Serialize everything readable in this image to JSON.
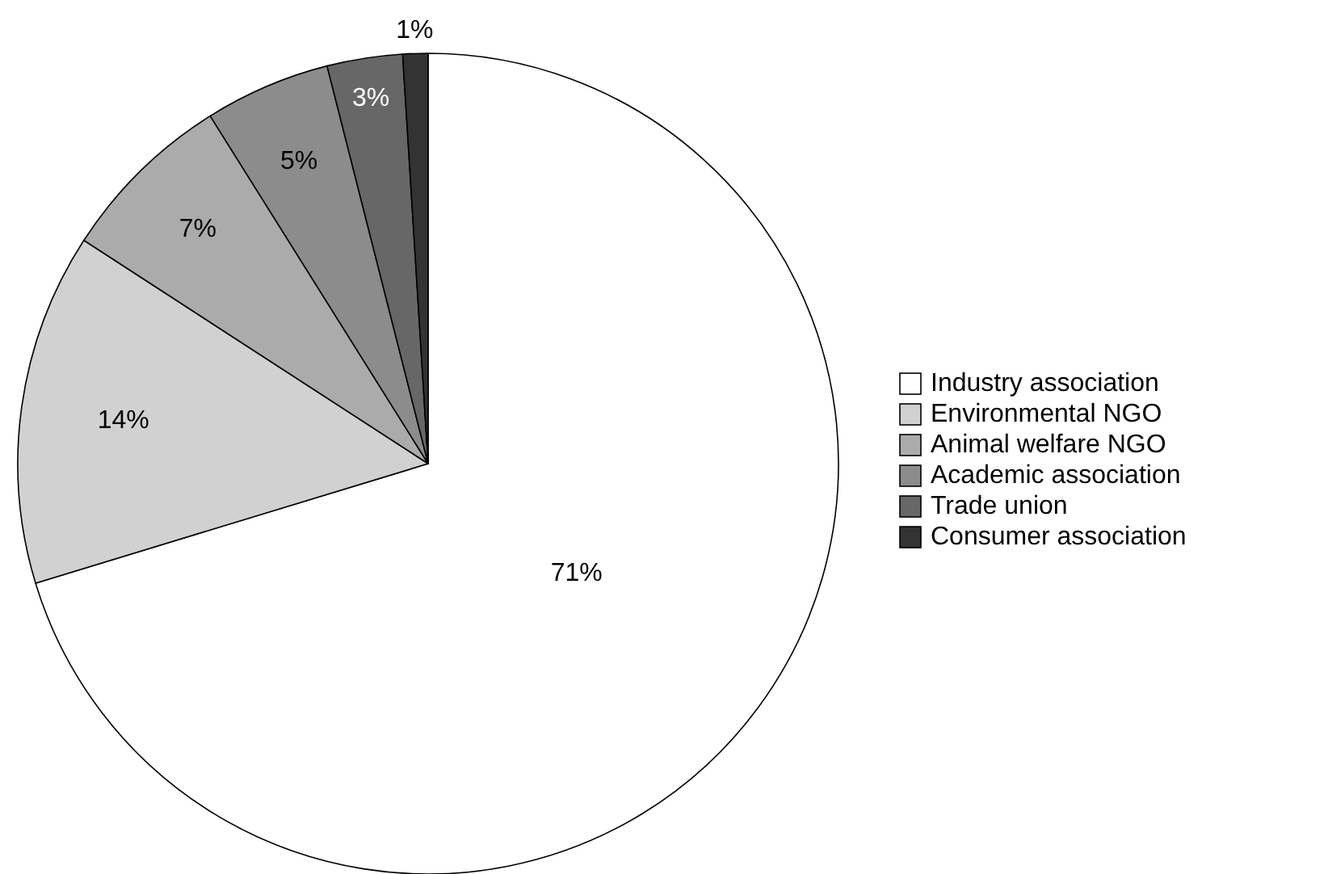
{
  "chart_data": {
    "type": "pie",
    "categories": [
      "Industry association",
      "Environmental NGO",
      "Animal welfare NGO",
      "Academic association",
      "Trade union",
      "Consumer association"
    ],
    "values": [
      71,
      14,
      7,
      5,
      3,
      1
    ],
    "colors": [
      "#ffffff",
      "#d1d1d1",
      "#ababab",
      "#8c8c8c",
      "#676767",
      "#333333"
    ],
    "value_labels": [
      "71%",
      "14%",
      "7%",
      "5%",
      "3%",
      "1%"
    ],
    "legend": "right"
  }
}
